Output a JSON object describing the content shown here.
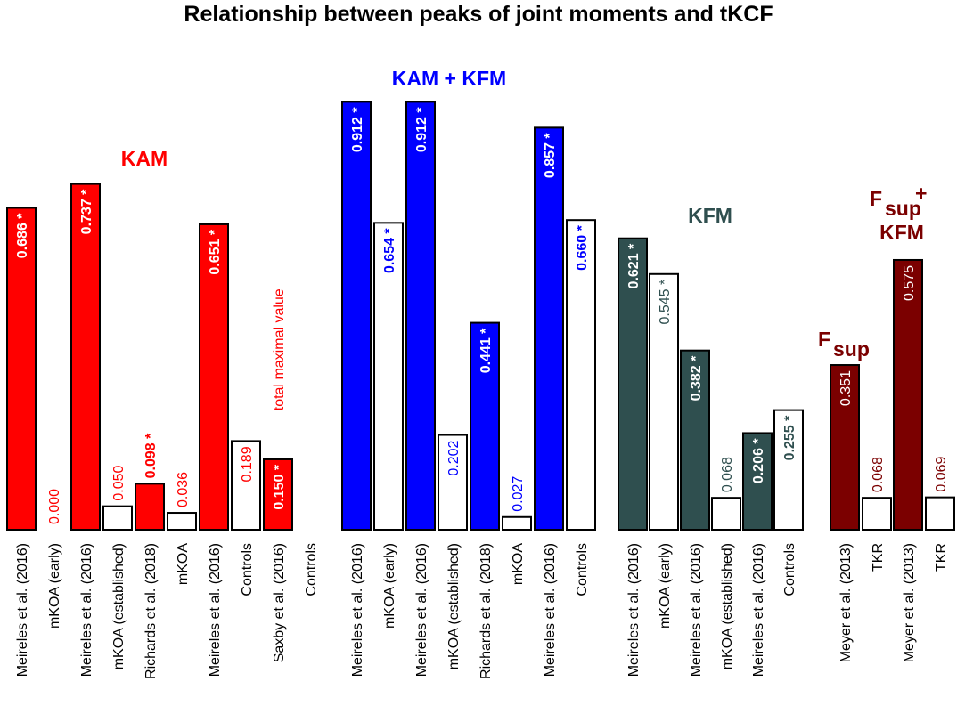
{
  "chart_data": {
    "type": "bar",
    "title": "Relationship between peaks of joint moments and tKCF",
    "ylim": [
      0,
      1.0
    ],
    "grid": false,
    "groups": [
      {
        "name": "KAM",
        "color": "#ff0000",
        "bars": [
          {
            "category": "Meireles et al. (2016)",
            "value": 0.686,
            "label": "0.686 *",
            "filled": true,
            "bold": true
          },
          {
            "category": "mKOA (early)",
            "value": 0.0,
            "label": "0.000",
            "filled": false,
            "bold": false
          },
          {
            "category": "Meireles et al. (2016)",
            "value": 0.737,
            "label": "0.737 *",
            "filled": true,
            "bold": true
          },
          {
            "category": "mKOA (established)",
            "value": 0.05,
            "label": "0.050",
            "filled": false,
            "bold": false
          },
          {
            "category": "Richards et al. (2018)",
            "value": 0.098,
            "label": "0.098 *",
            "filled": true,
            "bold": true
          },
          {
            "category": "mKOA",
            "value": 0.036,
            "label": "0.036",
            "filled": false,
            "bold": false
          },
          {
            "category": "Meireles et al. (2016)",
            "value": 0.651,
            "label": "0.651 *",
            "filled": true,
            "bold": true
          },
          {
            "category": "Controls",
            "value": 0.189,
            "label": "0.189",
            "filled": false,
            "bold": false
          },
          {
            "category": "Saxby et al. (2016)",
            "value": 0.15,
            "label": "0.150 *",
            "filled": true,
            "bold": true
          },
          {
            "category": "Controls",
            "value": null,
            "label": "",
            "filled": false,
            "bold": false
          }
        ]
      },
      {
        "name": "KAM + KFM",
        "color": "#0000ff",
        "bars": [
          {
            "category": "Meireles et al. (2016)",
            "value": 0.912,
            "label": "0.912 *",
            "filled": true,
            "bold": true
          },
          {
            "category": "mKOA (early)",
            "value": 0.654,
            "label": "0.654 *",
            "filled": false,
            "bold": true
          },
          {
            "category": "Meireles et al. (2016)",
            "value": 0.912,
            "label": "0.912 *",
            "filled": true,
            "bold": true
          },
          {
            "category": "mKOA (established)",
            "value": 0.202,
            "label": "0.202",
            "filled": false,
            "bold": false
          },
          {
            "category": "Richards et al. (2018)",
            "value": 0.441,
            "label": "0.441 *",
            "filled": true,
            "bold": true
          },
          {
            "category": "mKOA",
            "value": 0.027,
            "label": "0.027",
            "filled": false,
            "bold": false
          },
          {
            "category": "Meireles et al. (2016)",
            "value": 0.857,
            "label": "0.857 *",
            "filled": true,
            "bold": true
          },
          {
            "category": "Controls",
            "value": 0.66,
            "label": "0.660 *",
            "filled": false,
            "bold": true
          }
        ]
      },
      {
        "name": "KFM",
        "color": "#2f4f4f",
        "bars": [
          {
            "category": "Meireles et al. (2016)",
            "value": 0.621,
            "label": "0.621 *",
            "filled": true,
            "bold": true
          },
          {
            "category": "mKOA (early)",
            "value": 0.545,
            "label": "0.545 *",
            "filled": false,
            "bold": false
          },
          {
            "category": "Meireles et al. (2016)",
            "value": 0.382,
            "label": "0.382 *",
            "filled": true,
            "bold": true
          },
          {
            "category": "mKOA (established)",
            "value": 0.068,
            "label": "0.068",
            "filled": false,
            "bold": false
          },
          {
            "category": "Meireles et al. (2016)",
            "value": 0.206,
            "label": "0.206 *",
            "filled": true,
            "bold": true
          },
          {
            "category": "Controls",
            "value": 0.255,
            "label": "0.255 *",
            "filled": false,
            "bold": true
          }
        ]
      },
      {
        "name": "Fsup",
        "color": "#7b0000",
        "bars": [
          {
            "category": "Meyer et al. (2013)",
            "value": 0.351,
            "label": "0.351",
            "filled": true,
            "bold": false
          },
          {
            "category": "TKR",
            "value": 0.068,
            "label": "0.068",
            "filled": false,
            "bold": false
          }
        ]
      },
      {
        "name": "Fsup + KFM",
        "color": "#7b0000",
        "bars": [
          {
            "category": "Meyer et al. (2013)",
            "value": 0.575,
            "label": "0.575",
            "filled": true,
            "bold": false
          },
          {
            "category": "TKR",
            "value": 0.069,
            "label": "0.069",
            "filled": false,
            "bold": false
          }
        ]
      }
    ],
    "group_labels": {
      "kam": "KAM",
      "kam_kfm": "KAM + KFM",
      "kfm": "KFM",
      "fsup_main": "F",
      "fsup_sub": "sup",
      "fsup_kfm_main": "F",
      "fsup_kfm_sub": "sup",
      "fsup_kfm_plus": "+",
      "fsup_kfm_line2": "KFM"
    },
    "annotations": [
      {
        "text": "total maximal value",
        "group": "KAM",
        "bar_index": 8
      }
    ]
  }
}
